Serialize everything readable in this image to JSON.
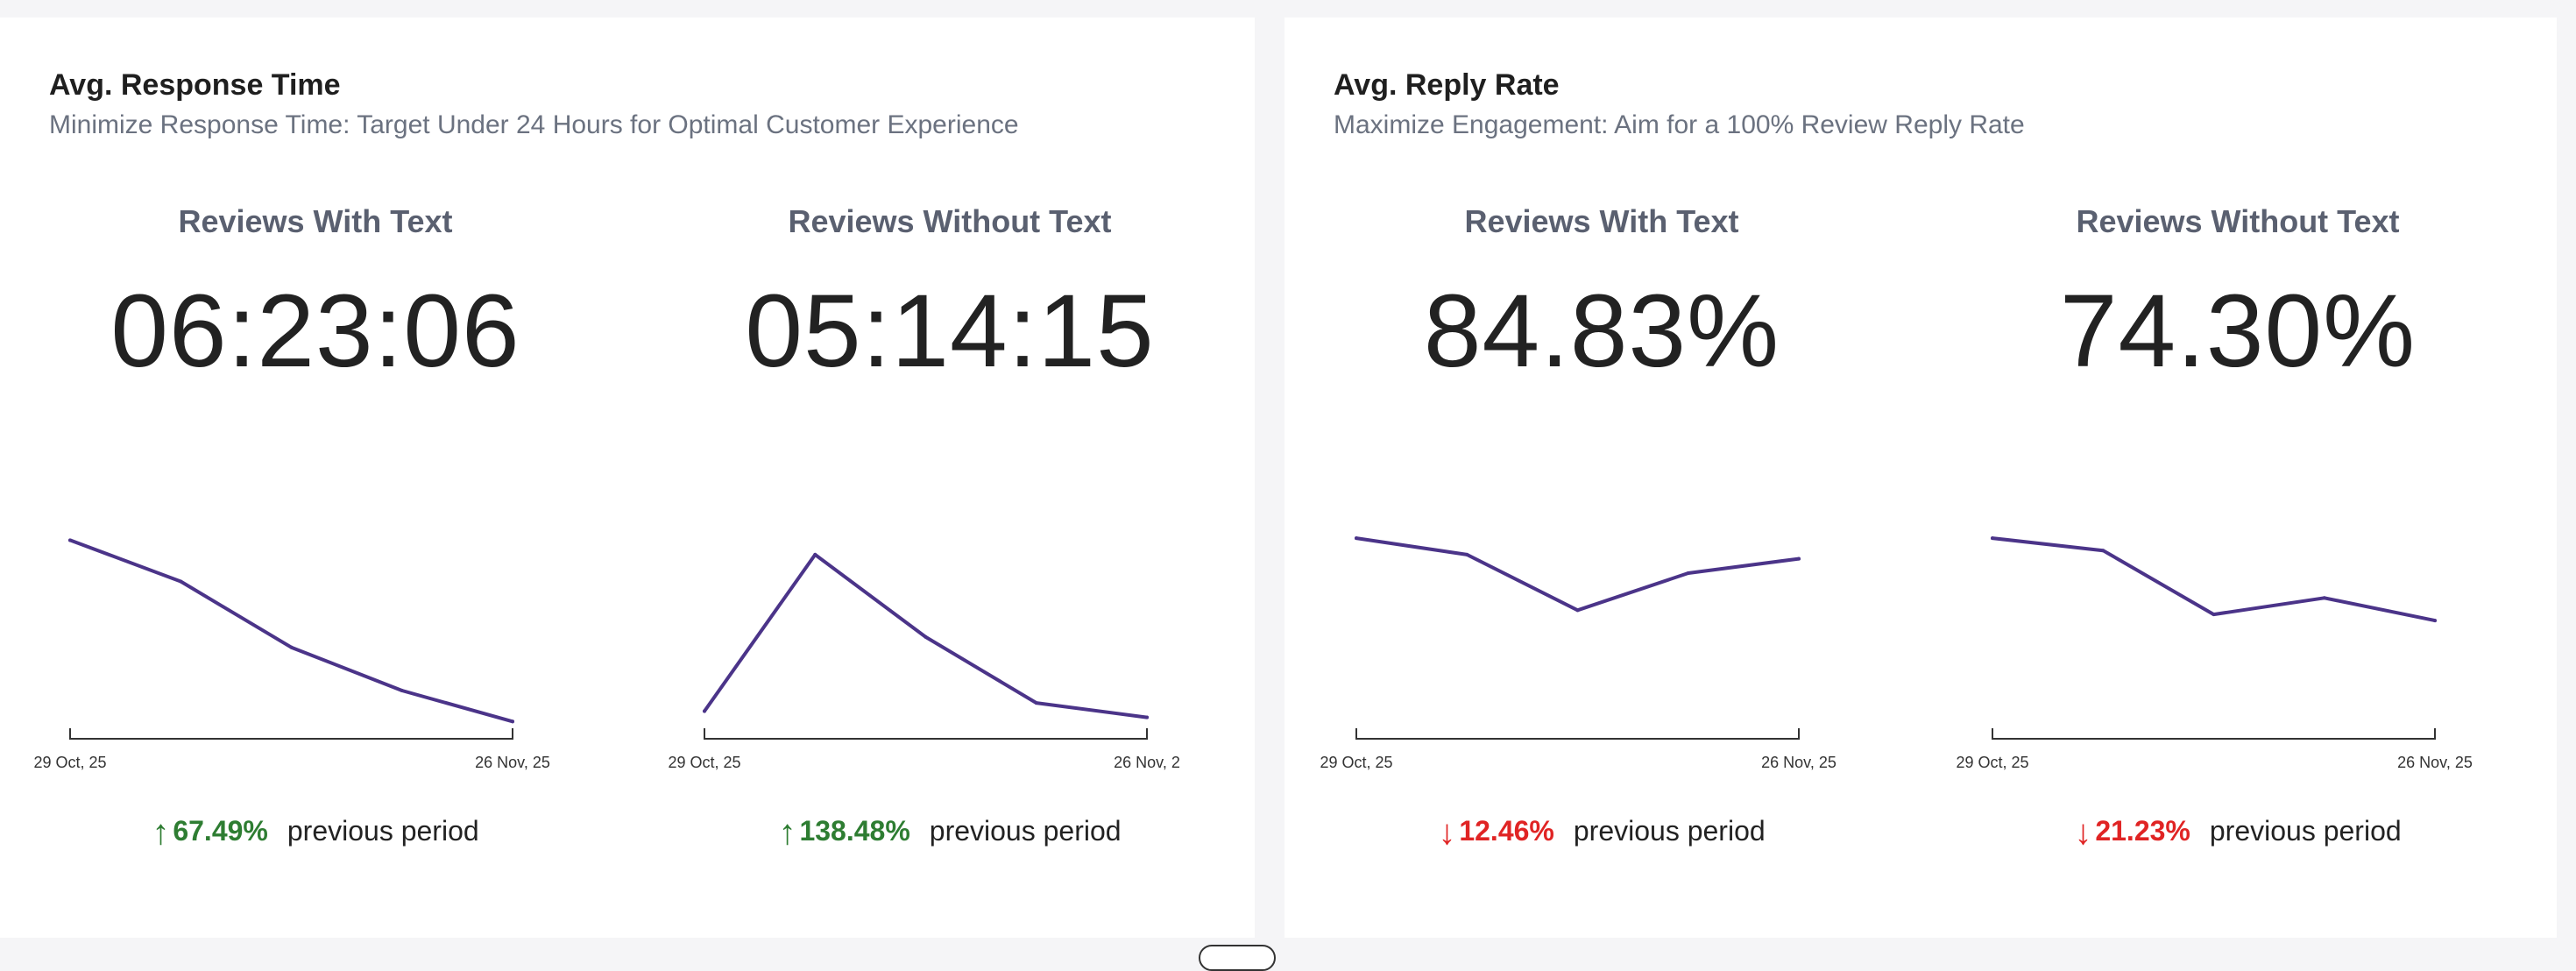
{
  "cards": [
    {
      "title": "Avg. Response Time",
      "subtitle": "Minimize Response Time: Target Under 24 Hours for Optimal Customer Experience",
      "metrics": [
        {
          "label": "Reviews With Text",
          "value": "06:23:06",
          "change": "67.49%",
          "direction": "up",
          "comparison_label": "previous period"
        },
        {
          "label": "Reviews Without Text",
          "value": "05:14:15",
          "change": "138.48%",
          "direction": "up",
          "comparison_label": "previous period"
        }
      ]
    },
    {
      "title": "Avg. Reply Rate",
      "subtitle": "Maximize Engagement: Aim for a 100% Review Reply Rate",
      "metrics": [
        {
          "label": "Reviews With Text",
          "value": "84.83%",
          "change": "12.46%",
          "direction": "down",
          "comparison_label": "previous period"
        },
        {
          "label": "Reviews Without Text",
          "value": "74.30%",
          "change": "21.23%",
          "direction": "down",
          "comparison_label": "previous period"
        }
      ]
    }
  ],
  "arrows": {
    "up": "↑",
    "down": "↓"
  },
  "colors": {
    "line": "#4b3489",
    "up": "#2e7d32",
    "down": "#e02424",
    "axis": "#333333"
  },
  "chart_data": [
    {
      "type": "line",
      "title": "Reviews With Text",
      "series": [
        {
          "name": "Avg. Response Time",
          "values": [
            0.93,
            0.73,
            0.41,
            0.2,
            0.05
          ]
        }
      ],
      "x_tick_labels": [
        "29 Oct, 25",
        "26 Nov, 25"
      ],
      "ylim": [
        0,
        1
      ]
    },
    {
      "type": "line",
      "title": "Reviews Without Text",
      "series": [
        {
          "name": "Avg. Response Time",
          "values": [
            0.1,
            0.86,
            0.46,
            0.14,
            0.07
          ]
        }
      ],
      "x_tick_labels": [
        "29 Oct, 25",
        "26 Nov, 2"
      ],
      "ylim": [
        0,
        1
      ]
    },
    {
      "type": "line",
      "title": "Reviews With Text",
      "series": [
        {
          "name": "Avg. Reply Rate",
          "values": [
            0.94,
            0.86,
            0.59,
            0.77,
            0.84
          ]
        }
      ],
      "x_tick_labels": [
        "29 Oct, 25",
        "26 Nov, 25"
      ],
      "ylim": [
        0,
        1
      ]
    },
    {
      "type": "line",
      "title": "Reviews Without Text",
      "series": [
        {
          "name": "Avg. Reply Rate",
          "values": [
            0.94,
            0.88,
            0.57,
            0.65,
            0.54
          ]
        }
      ],
      "x_tick_labels": [
        "29 Oct, 25",
        "26 Nov, 25"
      ],
      "ylim": [
        0,
        1
      ]
    }
  ]
}
